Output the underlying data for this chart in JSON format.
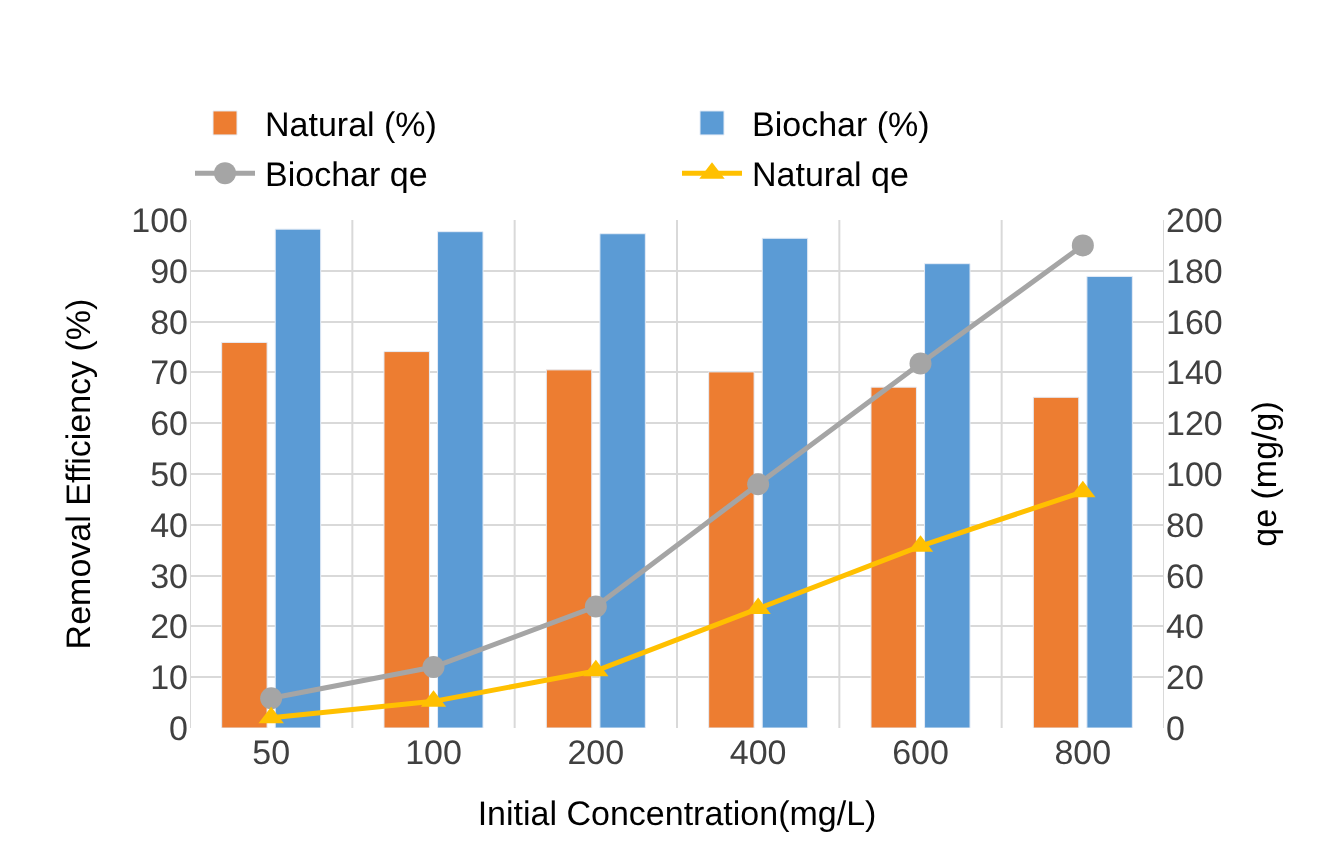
{
  "chart_data": {
    "type": "bar",
    "xlabel": "Initial Concentration(mg/L)",
    "ylabel": "Removal Efficiency (%)",
    "y2label": "qe (mg/g)",
    "categories": [
      "50",
      "100",
      "200",
      "400",
      "600",
      "800"
    ],
    "series": [
      {
        "name": "Natural (%)",
        "color": "#ed7d31",
        "values": [
          75.9,
          74.1,
          70.5,
          70.1,
          67.1,
          65.1
        ]
      },
      {
        "name": "Biochar (%)",
        "color": "#5b9bd5",
        "values": [
          98.2,
          97.7,
          97.3,
          96.4,
          91.4,
          88.9
        ]
      },
      {
        "name": "Biochar qe",
        "type": "line",
        "axis": "y2",
        "marker": "circle",
        "color": "#a5a5a5",
        "values": [
          11.7,
          24,
          47.8,
          96,
          143.5,
          190
        ]
      },
      {
        "name": "Natural qe",
        "type": "line",
        "axis": "y2",
        "marker": "triangle",
        "color": "#ffc000",
        "values": [
          4,
          10.5,
          22.5,
          47,
          71.6,
          93
        ]
      }
    ],
    "ylim": [
      0,
      100
    ],
    "yticks": [
      0,
      10,
      20,
      30,
      40,
      50,
      60,
      70,
      80,
      90,
      100
    ],
    "y2lim": [
      0,
      200
    ],
    "y2ticks": [
      0,
      20,
      40,
      60,
      80,
      100,
      120,
      140,
      160,
      180,
      200
    ],
    "grid": true,
    "legend": "top"
  }
}
